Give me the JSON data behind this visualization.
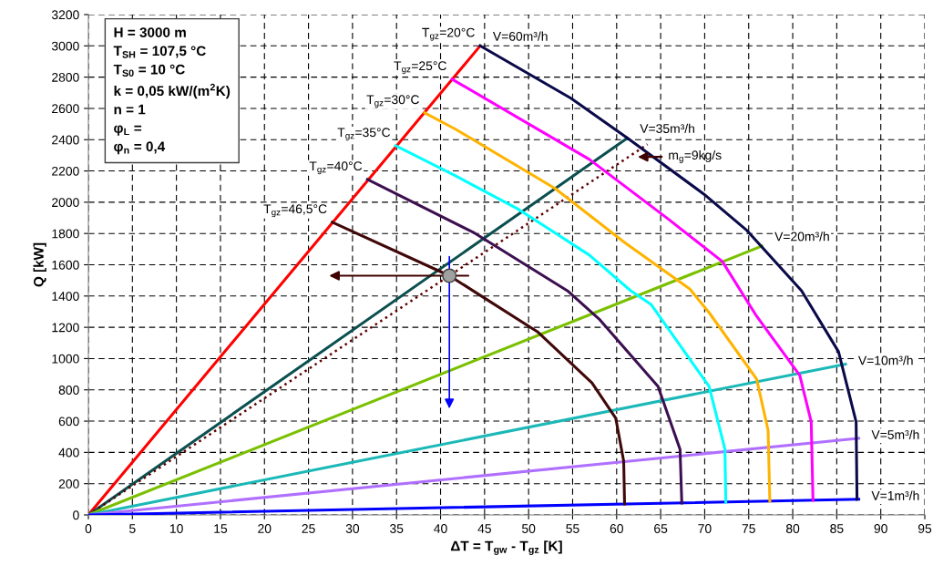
{
  "chart_data": {
    "type": "line",
    "xlabel": "ΔT = T$_{gw}$ - T$_{gz}$ [K]",
    "ylabel": "Q [kW]",
    "xlim": [
      0,
      95
    ],
    "xticks": [
      0,
      5,
      10,
      15,
      20,
      25,
      30,
      35,
      40,
      45,
      50,
      55,
      60,
      65,
      70,
      75,
      80,
      85,
      90,
      95
    ],
    "ylim": [
      0,
      3200
    ],
    "yticks": [
      0,
      200,
      400,
      600,
      800,
      1000,
      1200,
      1400,
      1600,
      1800,
      2000,
      2200,
      2400,
      2600,
      2800,
      3000,
      3200
    ],
    "grid": true,
    "legend": false,
    "marker": "none",
    "line_style": "solid",
    "series": [
      {
        "name": "V=60m³/h",
        "color": "#ff0000",
        "x": [
          0,
          44.5
        ],
        "values": [
          0,
          3000
        ]
      },
      {
        "name": "V=35m³/h",
        "color": "#0b4f4f",
        "x": [
          0,
          61.2
        ],
        "values": [
          0,
          2410
        ]
      },
      {
        "color": "#600000",
        "line_style": "dotted",
        "x": [
          0,
          63.5
        ],
        "values": [
          0,
          2370
        ]
      },
      {
        "name": "V=20m³/h",
        "color": "#7ac000",
        "x": [
          0,
          76.5
        ],
        "values": [
          0,
          1720
        ]
      },
      {
        "name": "V=10m³/h",
        "color": "#1cb8b8",
        "x": [
          0,
          86
        ],
        "values": [
          0,
          965
        ]
      },
      {
        "name": "V=5m³/h",
        "color": "#b070ff",
        "x": [
          0,
          87.5
        ],
        "values": [
          0,
          490
        ]
      },
      {
        "name": "V=1m³/h",
        "color": "#0000ff",
        "x": [
          0,
          61,
          87.5
        ],
        "values": [
          0,
          70,
          100
        ]
      },
      {
        "name": "T$_{gz}$=20°C",
        "color": "#0a0a4a",
        "x": [
          44.5,
          54.8,
          61.3,
          69.9,
          74.8,
          81.0,
          85.2,
          87.2,
          87.3
        ],
        "values": [
          3000,
          2665,
          2408,
          2052,
          1819,
          1434,
          1044,
          595,
          100
        ]
      },
      {
        "name": "T$_{gz}$=25°C",
        "color": "#ff00ff",
        "x": [
          41.3,
          56.9,
          65.8,
          72.0,
          75.9,
          80.8,
          82.1,
          82.3
        ],
        "values": [
          2787,
          2274,
          1895,
          1621,
          1271,
          892,
          595,
          93
        ]
      },
      {
        "name": "T$_{gz}$=30°C",
        "color": "#ffb300",
        "x": [
          38.2,
          41.7,
          53.0,
          61.0,
          68.3,
          70.5,
          75.9,
          77.2,
          77.4
        ],
        "values": [
          2571,
          2467,
          2088,
          1738,
          1446,
          1294,
          869,
          542,
          88
        ]
      },
      {
        "name": "T$_{gz}$=35°C",
        "color": "#00ffff",
        "x": [
          34.9,
          41.7,
          48.9,
          56.9,
          61.6,
          63.9,
          70.5,
          72.3,
          72.4
        ],
        "values": [
          2361,
          2169,
          1953,
          1662,
          1434,
          1347,
          822,
          420,
          82
        ]
      },
      {
        "name": "T$_{gz}$=40°C",
        "color": "#3c0f50",
        "x": [
          31.7,
          43.7,
          54.4,
          58.1,
          64.7,
          67.2,
          67.4
        ],
        "values": [
          2146,
          1808,
          1434,
          1248,
          822,
          420,
          76
        ]
      },
      {
        "name": "T$_{gz}$=46,5°C",
        "color": "#400808",
        "x": [
          27.7,
          41,
          44.8,
          51.0,
          57.2,
          59.9,
          60.8,
          60.9
        ],
        "values": [
          1872,
          1530,
          1394,
          1172,
          845,
          618,
          344,
          70
        ]
      },
      {
        "type": "scatter",
        "color": "#a0a0a0",
        "marker": "circle",
        "x": [
          41
        ],
        "values": [
          1530
        ]
      }
    ],
    "annotations": [
      "H = 3000 m",
      "T$_{SH}$ = 107,5 °C",
      "T$_{S0}$ = 10 °C",
      "k = 0,05 kW/(m$^{2}$K)",
      "n = 1",
      "φ$_{L}$ =",
      "φ$_{n}$ = 0,4",
      {
        "text": "m$_{g}$=9kg/s",
        "x": 62.4,
        "y": 2290
      }
    ]
  }
}
